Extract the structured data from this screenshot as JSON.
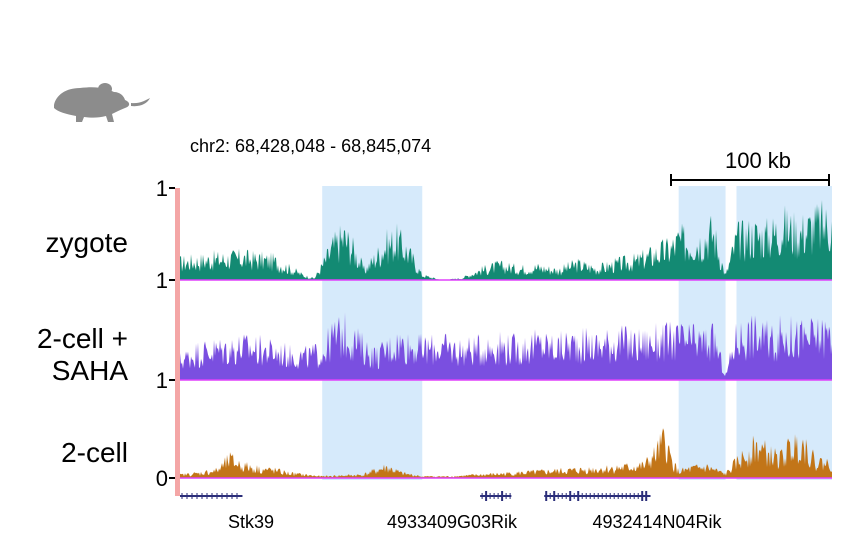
{
  "colors": {
    "highlight": "#d6eafb",
    "axis_bar": "#f4a6a6",
    "baseline": "#e040fb",
    "mouse": "#8c8c8c",
    "gene": "#2b2e7a",
    "scale_bar": "#000000"
  },
  "icons": {
    "organism": "mouse-icon"
  },
  "region": {
    "label": "chr2: 68,428,048 - 68,845,074"
  },
  "scale_bar": {
    "label": "100 kb",
    "length_kb": 100
  },
  "chart_data": {
    "type": "area",
    "x_domain_bp": [
      68428048,
      68845074
    ],
    "highlights_bp": [
      [
        68519000,
        68583000
      ],
      [
        68747000,
        68777000
      ],
      [
        68784000,
        68845074
      ]
    ],
    "tracks": [
      {
        "name": "zygote",
        "color": "#138a73",
        "tick_top": "1",
        "tick_bottom": "1",
        "x_bp": [
          68428048,
          68448000,
          68468000,
          68488000,
          68508000,
          68514000,
          68519000,
          68526000,
          68533000,
          68539000,
          68546000,
          68553000,
          68560000,
          68567000,
          68574000,
          68583000,
          68595000,
          68608000,
          68620000,
          68632000,
          68645000,
          68657000,
          68670000,
          68682000,
          68695000,
          68707000,
          68720000,
          68733000,
          68742000,
          68747000,
          68754000,
          68761000,
          68769000,
          68777000,
          68784000,
          68794000,
          68804000,
          68814000,
          68824000,
          68834000,
          68845074
        ],
        "values": [
          0.22,
          0.26,
          0.28,
          0.24,
          0.05,
          0.02,
          0.18,
          0.42,
          0.55,
          0.38,
          0.12,
          0.28,
          0.45,
          0.5,
          0.35,
          0.06,
          0.0,
          0.02,
          0.12,
          0.18,
          0.14,
          0.16,
          0.12,
          0.2,
          0.14,
          0.2,
          0.24,
          0.34,
          0.4,
          0.5,
          0.48,
          0.5,
          0.62,
          0.05,
          0.52,
          0.58,
          0.56,
          0.68,
          0.6,
          0.7,
          0.72
        ]
      },
      {
        "name": "2-cell +\nSAHA",
        "color": "#7a4fe0",
        "tick_top": "",
        "tick_bottom": "1",
        "x_bp": [
          68428048,
          68438000,
          68448000,
          68458000,
          68468000,
          68478000,
          68488000,
          68498000,
          68508000,
          68519000,
          68526000,
          68533000,
          68540000,
          68547000,
          68554000,
          68561000,
          68568000,
          68575000,
          68583000,
          68595000,
          68608000,
          68620000,
          68632000,
          68645000,
          68657000,
          68670000,
          68682000,
          68695000,
          68707000,
          68720000,
          68733000,
          68747000,
          68755000,
          68763000,
          68770000,
          68777000,
          68784000,
          68794000,
          68804000,
          68814000,
          68824000,
          68834000,
          68845074
        ],
        "values": [
          0.25,
          0.35,
          0.38,
          0.4,
          0.42,
          0.4,
          0.36,
          0.32,
          0.3,
          0.35,
          0.55,
          0.6,
          0.5,
          0.38,
          0.3,
          0.4,
          0.48,
          0.44,
          0.4,
          0.42,
          0.38,
          0.4,
          0.44,
          0.4,
          0.46,
          0.42,
          0.48,
          0.44,
          0.5,
          0.46,
          0.5,
          0.52,
          0.5,
          0.48,
          0.5,
          0.05,
          0.55,
          0.6,
          0.52,
          0.58,
          0.55,
          0.56,
          0.6
        ]
      },
      {
        "name": "2-cell",
        "color": "#c27518",
        "tick_top": "",
        "tick_bottom": "0",
        "x_bp": [
          68428048,
          68440000,
          68452000,
          68460000,
          68468000,
          68478000,
          68488000,
          68498000,
          68508000,
          68519000,
          68530000,
          68545000,
          68560000,
          68570000,
          68583000,
          68600000,
          68620000,
          68640000,
          68660000,
          68680000,
          68700000,
          68715000,
          68725000,
          68732000,
          68738000,
          68743000,
          68747000,
          68755000,
          68765000,
          68777000,
          68784000,
          68790000,
          68797000,
          68805000,
          68812000,
          68818000,
          68826000,
          68834000,
          68845074
        ],
        "values": [
          0.04,
          0.06,
          0.1,
          0.24,
          0.16,
          0.12,
          0.1,
          0.06,
          0.04,
          0.02,
          0.03,
          0.04,
          0.14,
          0.06,
          0.02,
          0.02,
          0.04,
          0.06,
          0.08,
          0.1,
          0.12,
          0.14,
          0.16,
          0.3,
          0.5,
          0.2,
          0.08,
          0.12,
          0.14,
          0.05,
          0.2,
          0.3,
          0.42,
          0.3,
          0.25,
          0.38,
          0.48,
          0.22,
          0.18
        ]
      }
    ],
    "genes": [
      {
        "name": "Stk39",
        "start_bp": 68428048,
        "end_bp": 68468000,
        "strand": "-"
      },
      {
        "name": "4933409G03Rik",
        "start_bp": 68620000,
        "end_bp": 68640000,
        "strand": "+"
      },
      {
        "name": "4932414N04Rik",
        "start_bp": 68661000,
        "end_bp": 68729000,
        "strand": "+"
      }
    ]
  }
}
